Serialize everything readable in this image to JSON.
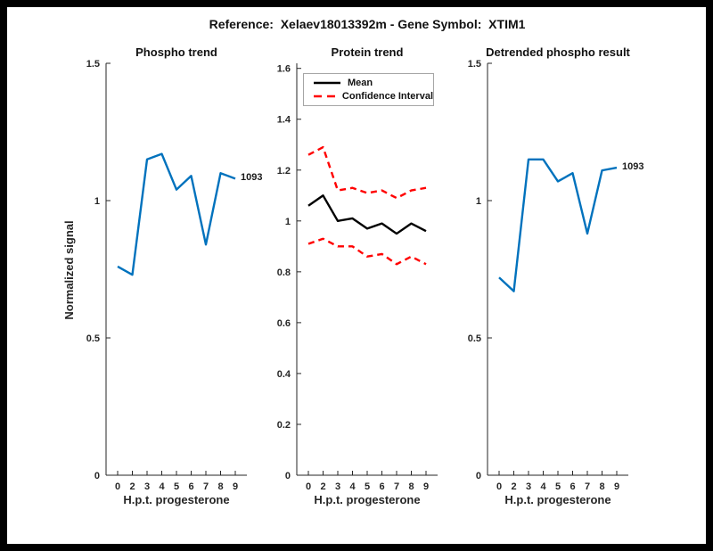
{
  "figure": {
    "title": "Reference:  Xelaev18013392m - Gene Symbol:  XTIM1",
    "colors": {
      "blue": "#0072BD",
      "red": "#FF0000",
      "black": "#000000",
      "axis": "#262626",
      "background": "#ffffff",
      "frame": "#000000"
    }
  },
  "chart_data": [
    {
      "name": "phospho-trend",
      "type": "line",
      "title": "Phospho trend",
      "xlabel": "H.p.t. progesterone",
      "ylabel": "Normalized signal",
      "x_categories": [
        "0",
        "2",
        "3",
        "4",
        "5",
        "6",
        "7",
        "8",
        "9"
      ],
      "yticks": [
        "0",
        "0.5",
        "1",
        "1.5"
      ],
      "ylim": [
        0,
        1.5
      ],
      "grid": false,
      "series": [
        {
          "name": "1093",
          "color": "#0072BD",
          "style": "solid",
          "width": 2.4,
          "end_label": "1093",
          "values": [
            0.76,
            0.73,
            1.15,
            1.17,
            1.04,
            1.09,
            0.84,
            1.1,
            1.08
          ]
        }
      ]
    },
    {
      "name": "protein-trend",
      "type": "line",
      "title": "Protein trend",
      "xlabel": "H.p.t. progesterone",
      "ylabel": "",
      "x_categories": [
        "0",
        "2",
        "3",
        "4",
        "5",
        "6",
        "7",
        "8",
        "9"
      ],
      "yticks": [
        "0",
        "0.2",
        "0.4",
        "0.6",
        "0.8",
        "1",
        "1.2",
        "1.4",
        "1.6"
      ],
      "ylim": [
        0,
        1.62
      ],
      "grid": false,
      "legend": {
        "position": "top-left",
        "entries": [
          {
            "label": "Mean",
            "color": "#000000",
            "style": "solid"
          },
          {
            "label": "Confidence Interval",
            "color": "#FF0000",
            "style": "dashed"
          }
        ]
      },
      "series": [
        {
          "name": "Mean",
          "color": "#000000",
          "style": "solid",
          "width": 2.4,
          "values": [
            1.06,
            1.1,
            1.0,
            1.01,
            0.97,
            0.99,
            0.95,
            0.99,
            0.96
          ]
        },
        {
          "name": "Confidence Interval upper",
          "color": "#FF0000",
          "style": "dashed",
          "width": 2.4,
          "values": [
            1.26,
            1.29,
            1.12,
            1.13,
            1.11,
            1.12,
            1.09,
            1.12,
            1.13
          ]
        },
        {
          "name": "Confidence Interval lower",
          "color": "#FF0000",
          "style": "dashed",
          "width": 2.4,
          "values": [
            0.91,
            0.93,
            0.9,
            0.9,
            0.86,
            0.87,
            0.83,
            0.86,
            0.83
          ]
        }
      ]
    },
    {
      "name": "detrended-phospho",
      "type": "line",
      "title": "Detrended phospho result",
      "xlabel": "H.p.t. progesterone",
      "ylabel": "",
      "x_categories": [
        "0",
        "2",
        "3",
        "4",
        "5",
        "6",
        "7",
        "8",
        "9"
      ],
      "yticks": [
        "0",
        "0.5",
        "1",
        "1.5"
      ],
      "ylim": [
        0,
        1.5
      ],
      "grid": false,
      "series": [
        {
          "name": "1093",
          "color": "#0072BD",
          "style": "solid",
          "width": 2.4,
          "end_label": "1093",
          "values": [
            0.72,
            0.67,
            1.15,
            1.15,
            1.07,
            1.1,
            0.88,
            1.11,
            1.12
          ]
        }
      ]
    }
  ]
}
